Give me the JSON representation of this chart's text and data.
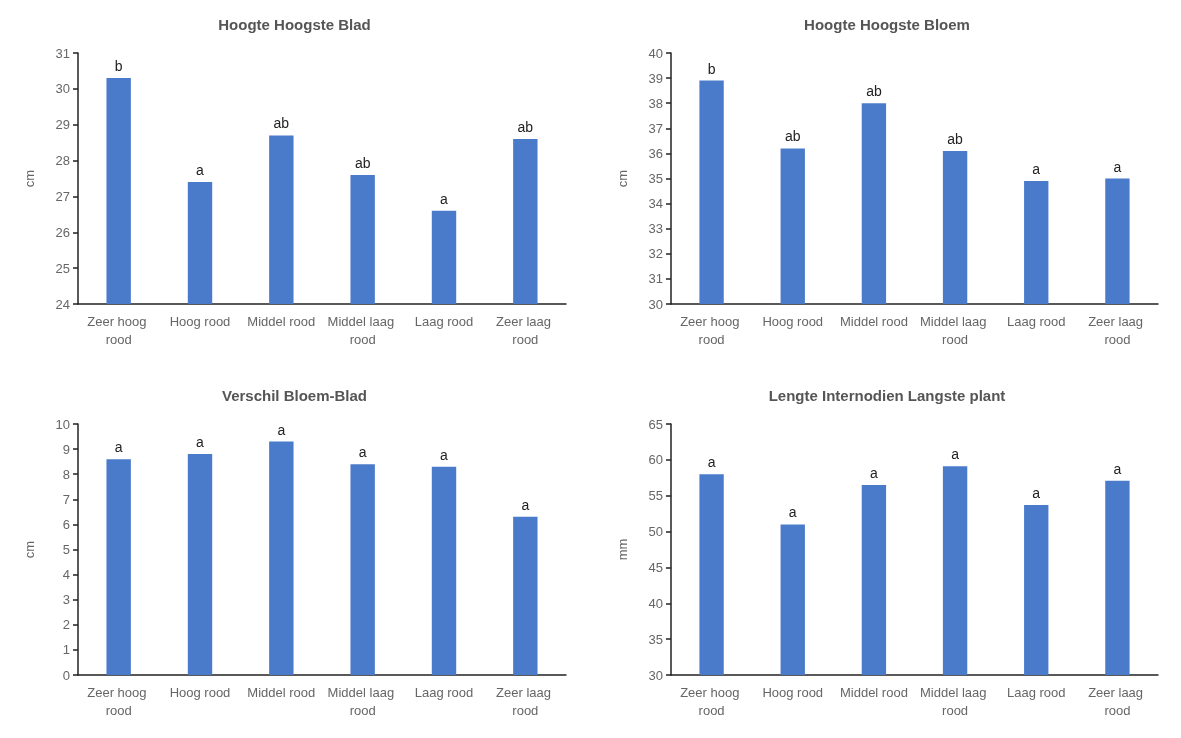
{
  "chart_data": [
    {
      "type": "bar",
      "title": "Hoogte Hoogste Blad",
      "ylabel": "cm",
      "categories": [
        "Zeer hoog rood",
        "Hoog rood",
        "Middel rood",
        "Middel laag rood",
        "Laag rood",
        "Zeer laag rood"
      ],
      "values": [
        30.3,
        27.4,
        28.7,
        27.6,
        26.6,
        28.6
      ],
      "value_labels": [
        "b",
        "a",
        "ab",
        "ab",
        "a",
        "ab"
      ],
      "color": "#4a7bca",
      "ylim": [
        24,
        31
      ],
      "yticks": [
        24,
        25,
        26,
        27,
        28,
        29,
        30,
        31
      ],
      "grid": false
    },
    {
      "type": "bar",
      "title": "Hoogte Hoogste Bloem",
      "ylabel": "cm",
      "categories": [
        "Zeer hoog rood",
        "Hoog rood",
        "Middel rood",
        "Middel laag rood",
        "Laag rood",
        "Zeer laag rood"
      ],
      "values": [
        38.9,
        36.2,
        38.0,
        36.1,
        34.9,
        35.0
      ],
      "value_labels": [
        "b",
        "ab",
        "ab",
        "ab",
        "a",
        "a"
      ],
      "color": "#4a7bca",
      "ylim": [
        30,
        40
      ],
      "yticks": [
        30,
        31,
        32,
        33,
        34,
        35,
        36,
        37,
        38,
        39,
        40
      ],
      "grid": false
    },
    {
      "type": "bar",
      "title": "Verschil Bloem-Blad",
      "ylabel": "cm",
      "categories": [
        "Zeer hoog rood",
        "Hoog rood",
        "Middel rood",
        "Middel laag rood",
        "Laag rood",
        "Zeer laag rood"
      ],
      "values": [
        8.6,
        8.8,
        9.3,
        8.4,
        8.3,
        6.3
      ],
      "value_labels": [
        "a",
        "a",
        "a",
        "a",
        "a",
        "a"
      ],
      "color": "#4a7bca",
      "ylim": [
        0,
        10
      ],
      "yticks": [
        0,
        1,
        2,
        3,
        4,
        5,
        6,
        7,
        8,
        9,
        10
      ],
      "grid": false
    },
    {
      "type": "bar",
      "title": "Lengte Internodien Langste plant",
      "ylabel": "mm",
      "categories": [
        "Zeer hoog rood",
        "Hoog rood",
        "Middel rood",
        "Middel laag rood",
        "Laag rood",
        "Zeer laag rood"
      ],
      "values": [
        58,
        51,
        56.5,
        59.1,
        53.7,
        57.1
      ],
      "value_labels": [
        "a",
        "a",
        "a",
        "a",
        "a",
        "a"
      ],
      "color": "#4a7bca",
      "ylim": [
        30,
        65
      ],
      "yticks": [
        30,
        35,
        40,
        45,
        50,
        55,
        60,
        65
      ],
      "grid": false
    }
  ]
}
